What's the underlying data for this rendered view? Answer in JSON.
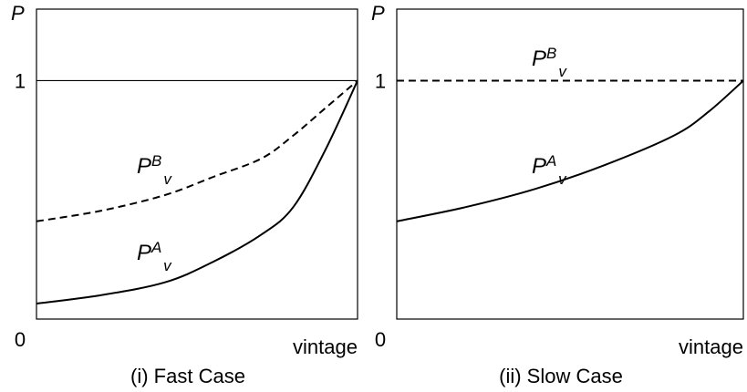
{
  "chart_data": [
    {
      "type": "line",
      "title": "(i) Fast Case",
      "x_label": "vintage",
      "y_label": "P",
      "x": [
        0,
        0.2,
        0.4,
        0.55,
        0.7,
        0.8,
        0.9,
        1
      ],
      "xlim": [
        0,
        1
      ],
      "ylim": [
        0,
        1.3
      ],
      "yticks": [
        0,
        1
      ],
      "hline": 1,
      "series": [
        {
          "label": {
            "base": "P",
            "sup": "B",
            "sub": "v"
          },
          "color": "#000000",
          "dashed": true,
          "values": [
            0.41,
            0.454,
            0.52,
            0.596,
            0.673,
            0.77,
            0.885,
            1
          ]
        },
        {
          "label": {
            "base": "P",
            "sup": "A",
            "sub": "v"
          },
          "color": "#000000",
          "dashed": false,
          "values": [
            0.065,
            0.1,
            0.154,
            0.24,
            0.354,
            0.47,
            0.71,
            1
          ]
        }
      ]
    },
    {
      "type": "line",
      "title": "(ii) Slow Case",
      "x_label": "vintage",
      "y_label": "P",
      "x": [
        0,
        0.2,
        0.4,
        0.6,
        0.8,
        0.9,
        1
      ],
      "xlim": [
        0,
        1
      ],
      "ylim": [
        0,
        1.3
      ],
      "yticks": [
        0,
        1
      ],
      "series": [
        {
          "label": {
            "base": "P",
            "sup": "B",
            "sub": "v"
          },
          "color": "#000000",
          "dashed": true,
          "values": [
            1,
            1,
            1,
            1,
            1,
            1,
            1
          ]
        },
        {
          "label": {
            "base": "P",
            "sup": "A",
            "sub": "v"
          },
          "color": "#000000",
          "dashed": false,
          "values": [
            0.41,
            0.47,
            0.546,
            0.646,
            0.77,
            0.87,
            1
          ]
        }
      ]
    }
  ]
}
